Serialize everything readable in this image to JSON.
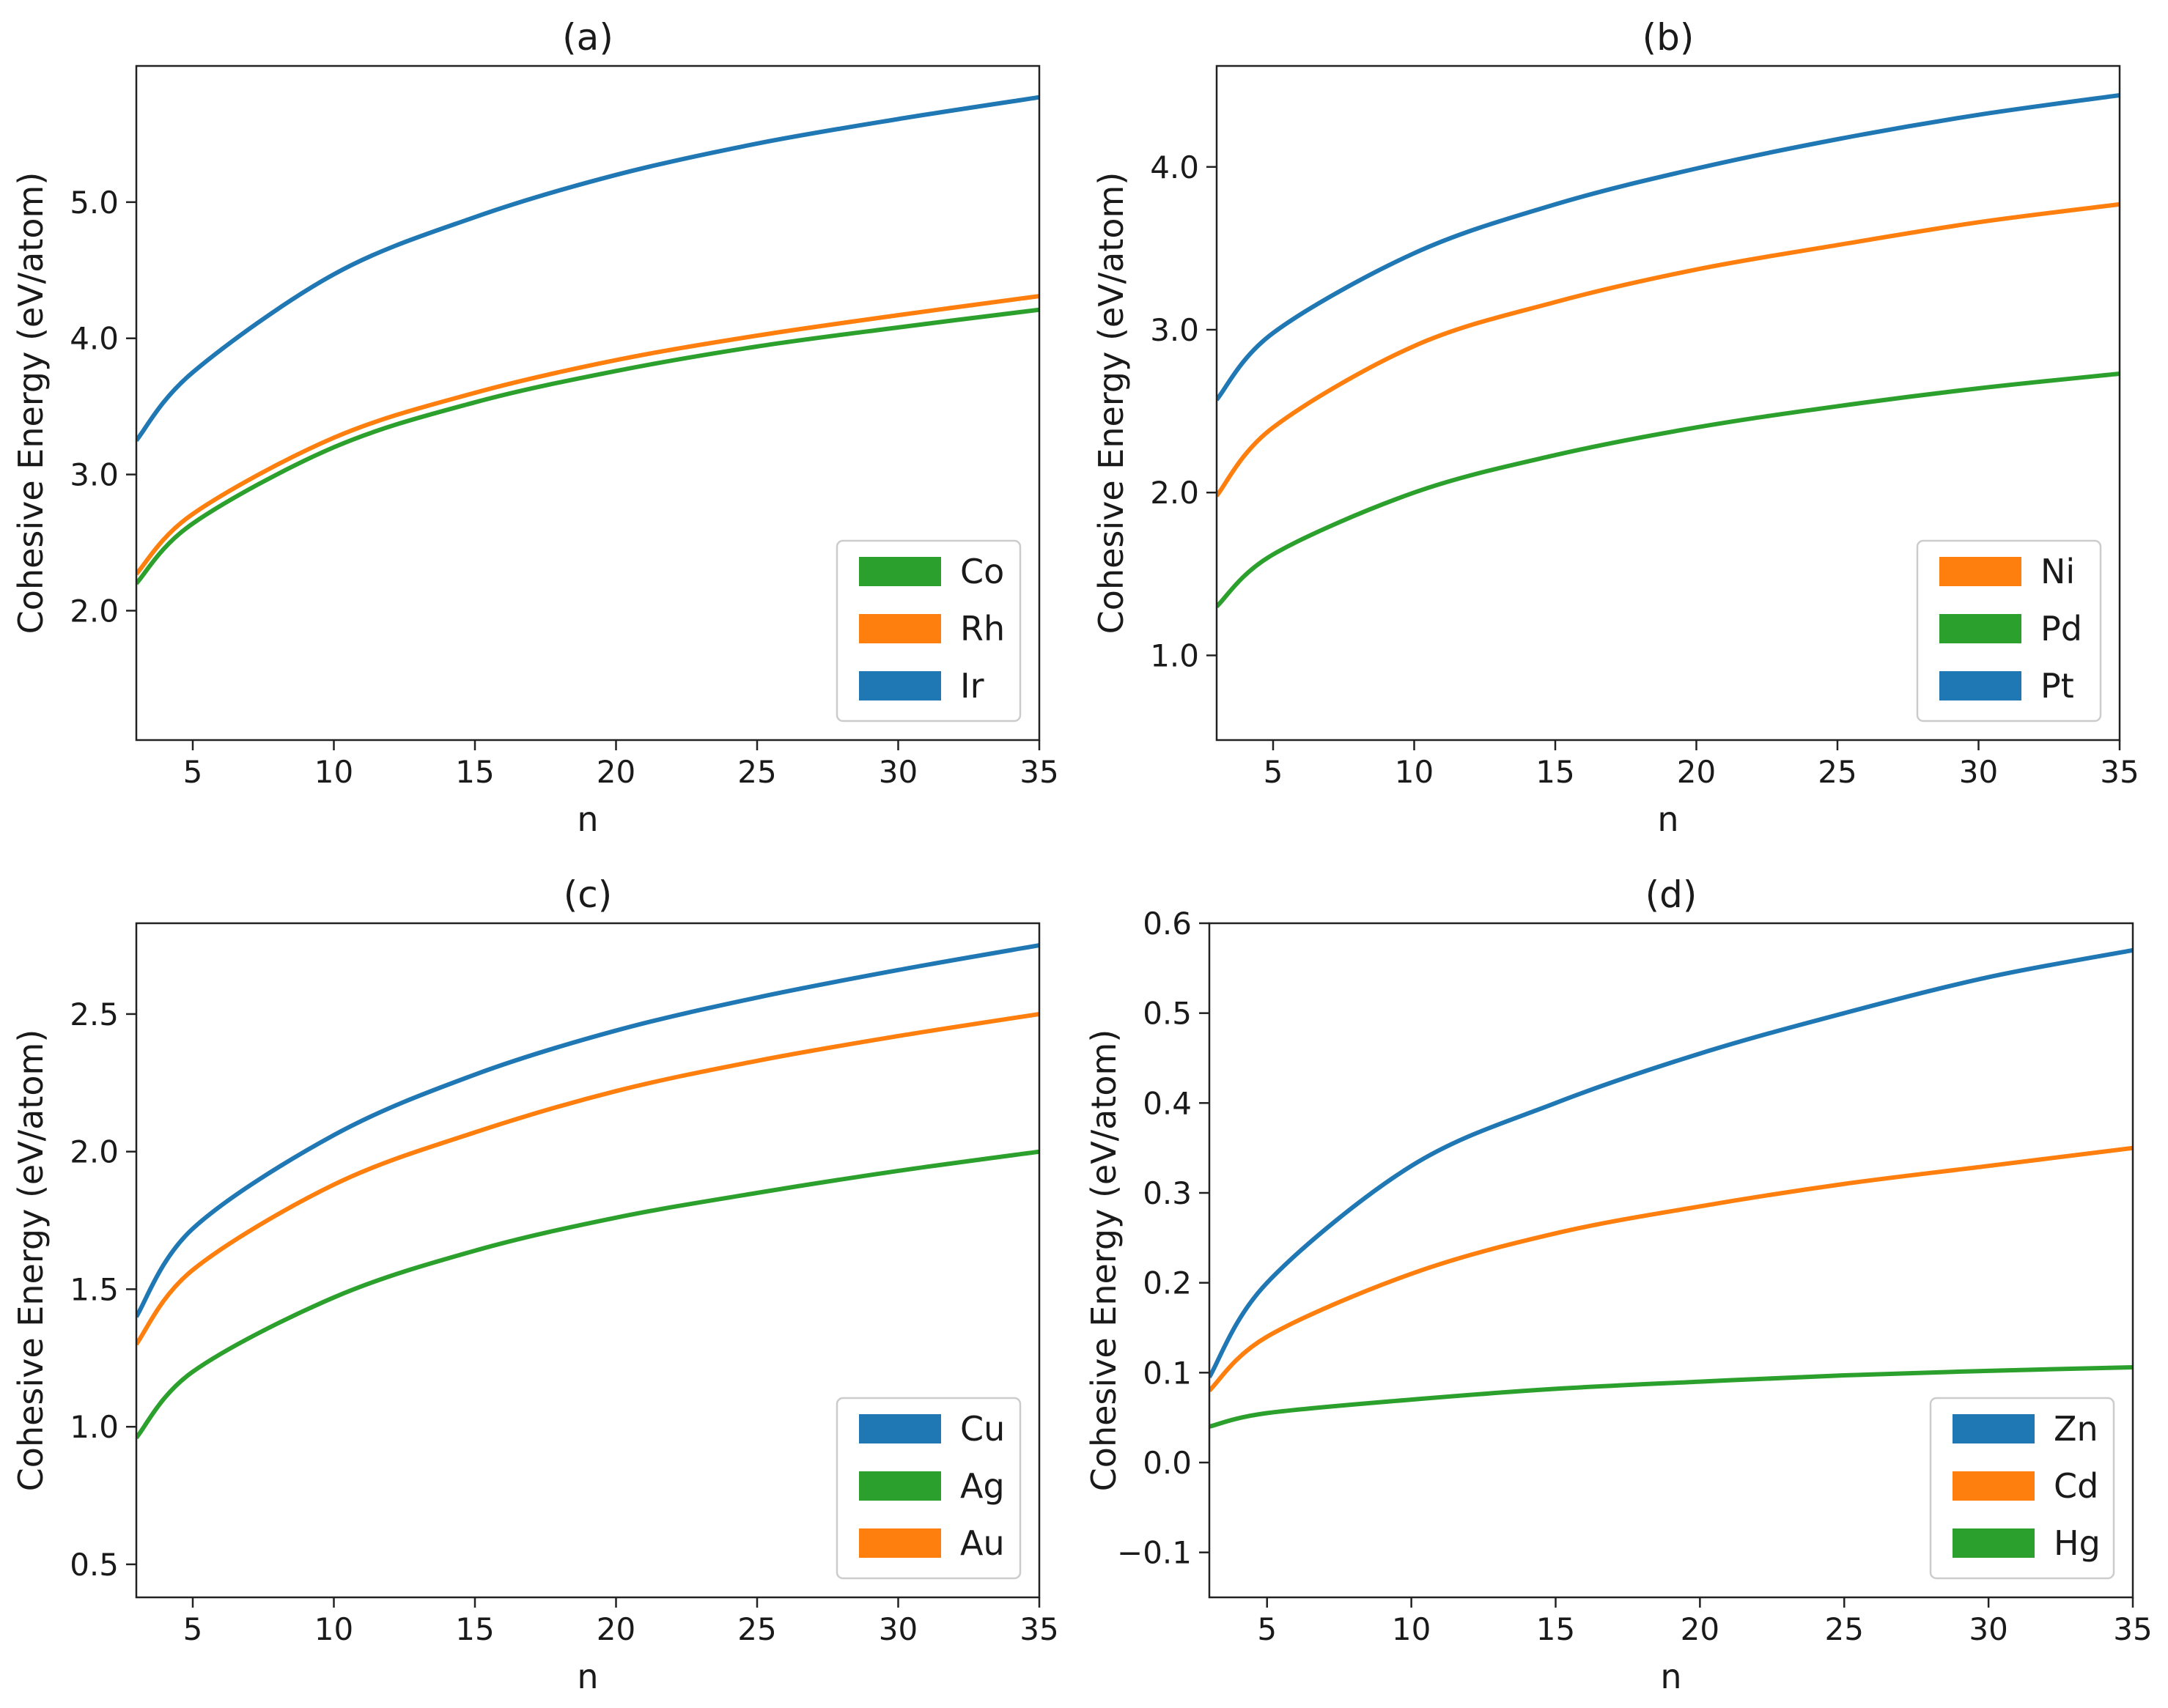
{
  "figure_title": "",
  "chart_data": [
    {
      "type": "line",
      "title": "(a)",
      "xlabel": "n",
      "ylabel": "Cohesive Energy (eV/atom)",
      "xlim": [
        3,
        35
      ],
      "ylim": [
        1.05,
        6.0
      ],
      "xticks": [
        5,
        10,
        15,
        20,
        25,
        30,
        35
      ],
      "xtick_labels": [
        "5",
        "10",
        "15",
        "20",
        "25",
        "30",
        "35"
      ],
      "yticks": [
        2.0,
        3.0,
        4.0,
        5.0
      ],
      "ytick_labels": [
        "2.0",
        "3.0",
        "4.0",
        "5.0"
      ],
      "legend_position": "bottom-right",
      "series": [
        {
          "name": "Co",
          "color": "#2ca02c",
          "x": [
            3,
            5,
            10,
            15,
            20,
            25,
            30,
            35
          ],
          "values": [
            2.2,
            2.64,
            3.2,
            3.53,
            3.76,
            3.94,
            4.08,
            4.21
          ]
        },
        {
          "name": "Rh",
          "color": "#ff7f0e",
          "x": [
            3,
            5,
            10,
            15,
            20,
            25,
            30,
            35
          ],
          "values": [
            2.27,
            2.71,
            3.27,
            3.6,
            3.84,
            4.02,
            4.17,
            4.31
          ]
        },
        {
          "name": "Ir",
          "color": "#1f77b4",
          "x": [
            3,
            5,
            10,
            15,
            20,
            25,
            30,
            35
          ],
          "values": [
            3.25,
            3.75,
            4.47,
            4.89,
            5.2,
            5.43,
            5.61,
            5.77
          ]
        }
      ]
    },
    {
      "type": "line",
      "title": "(b)",
      "xlabel": "n",
      "ylabel": "Cohesive Energy (eV/atom)",
      "xlim": [
        3,
        35
      ],
      "ylim": [
        0.48,
        4.62
      ],
      "xticks": [
        5,
        10,
        15,
        20,
        25,
        30,
        35
      ],
      "xtick_labels": [
        "5",
        "10",
        "15",
        "20",
        "25",
        "30",
        "35"
      ],
      "yticks": [
        1.0,
        2.0,
        3.0,
        4.0
      ],
      "ytick_labels": [
        "1.0",
        "2.0",
        "3.0",
        "4.0"
      ],
      "legend_position": "bottom-right",
      "series": [
        {
          "name": "Ni",
          "color": "#ff7f0e",
          "x": [
            3,
            5,
            10,
            15,
            20,
            25,
            30,
            35
          ],
          "values": [
            1.98,
            2.4,
            2.9,
            3.17,
            3.37,
            3.52,
            3.66,
            3.77
          ]
        },
        {
          "name": "Pd",
          "color": "#2ca02c",
          "x": [
            3,
            5,
            10,
            15,
            20,
            25,
            30,
            35
          ],
          "values": [
            1.3,
            1.62,
            2.0,
            2.23,
            2.4,
            2.53,
            2.64,
            2.73
          ]
        },
        {
          "name": "Pt",
          "color": "#1f77b4",
          "x": [
            3,
            5,
            10,
            15,
            20,
            25,
            30,
            35
          ],
          "values": [
            2.57,
            2.98,
            3.47,
            3.77,
            3.99,
            4.17,
            4.32,
            4.44
          ]
        }
      ]
    },
    {
      "type": "line",
      "title": "(c)",
      "xlabel": "n",
      "ylabel": "Cohesive Energy (eV/atom)",
      "xlim": [
        3,
        35
      ],
      "ylim": [
        0.38,
        2.83
      ],
      "xticks": [
        5,
        10,
        15,
        20,
        25,
        30,
        35
      ],
      "xtick_labels": [
        "5",
        "10",
        "15",
        "20",
        "25",
        "30",
        "35"
      ],
      "yticks": [
        0.5,
        1.0,
        1.5,
        2.0,
        2.5
      ],
      "ytick_labels": [
        "0.5",
        "1.0",
        "1.5",
        "2.0",
        "2.5"
      ],
      "legend_position": "bottom-right",
      "series": [
        {
          "name": "Cu",
          "color": "#1f77b4",
          "x": [
            3,
            5,
            10,
            15,
            20,
            25,
            30,
            35
          ],
          "values": [
            1.4,
            1.72,
            2.06,
            2.28,
            2.44,
            2.56,
            2.66,
            2.75
          ]
        },
        {
          "name": "Ag",
          "color": "#2ca02c",
          "x": [
            3,
            5,
            10,
            15,
            20,
            25,
            30,
            35
          ],
          "values": [
            0.96,
            1.2,
            1.47,
            1.64,
            1.76,
            1.85,
            1.93,
            2.0
          ]
        },
        {
          "name": "Au",
          "color": "#ff7f0e",
          "x": [
            3,
            5,
            10,
            15,
            20,
            25,
            30,
            35
          ],
          "values": [
            1.3,
            1.57,
            1.88,
            2.07,
            2.22,
            2.33,
            2.42,
            2.5
          ]
        }
      ]
    },
    {
      "type": "line",
      "title": "(d)",
      "xlabel": "n",
      "ylabel": "Cohesive Energy (eV/atom)",
      "xlim": [
        3,
        35
      ],
      "ylim": [
        -0.15,
        0.6
      ],
      "xticks": [
        5,
        10,
        15,
        20,
        25,
        30,
        35
      ],
      "xtick_labels": [
        "5",
        "10",
        "15",
        "20",
        "25",
        "30",
        "35"
      ],
      "yticks": [
        -0.1,
        0.0,
        0.1,
        0.2,
        0.3,
        0.4,
        0.5,
        0.6
      ],
      "ytick_labels": [
        "−0.1",
        "0.0",
        "0.1",
        "0.2",
        "0.3",
        "0.4",
        "0.5",
        "0.6"
      ],
      "legend_position": "bottom-right",
      "series": [
        {
          "name": "Zn",
          "color": "#1f77b4",
          "x": [
            3,
            5,
            10,
            15,
            20,
            25,
            30,
            35
          ],
          "values": [
            0.095,
            0.2,
            0.33,
            0.4,
            0.455,
            0.5,
            0.54,
            0.57
          ]
        },
        {
          "name": "Cd",
          "color": "#ff7f0e",
          "x": [
            3,
            5,
            10,
            15,
            20,
            25,
            30,
            35
          ],
          "values": [
            0.08,
            0.14,
            0.21,
            0.255,
            0.285,
            0.31,
            0.33,
            0.35
          ]
        },
        {
          "name": "Hg",
          "color": "#2ca02c",
          "x": [
            3,
            5,
            10,
            15,
            20,
            25,
            30,
            35
          ],
          "values": [
            0.04,
            0.055,
            0.07,
            0.082,
            0.09,
            0.097,
            0.102,
            0.106
          ]
        }
      ]
    }
  ]
}
